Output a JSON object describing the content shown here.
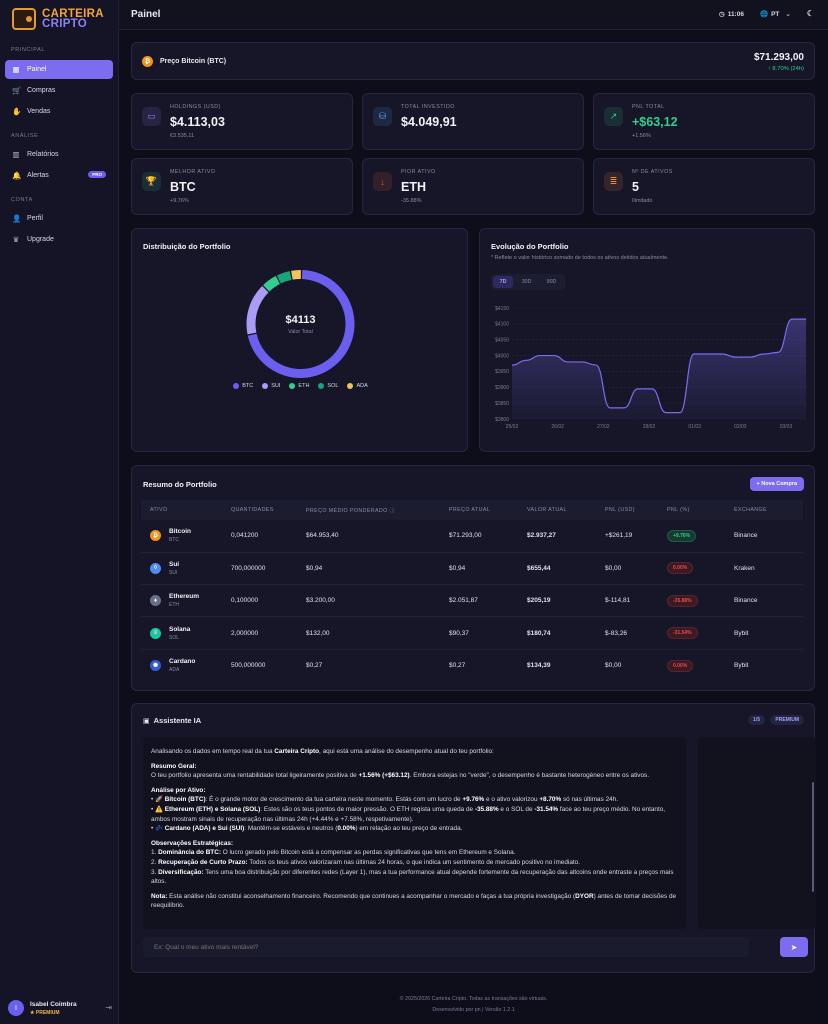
{
  "app": {
    "name_line1": "CARTEIRA",
    "name_line2": "CRIPTO"
  },
  "sidebar": {
    "sections": [
      "PRINCIPAL",
      "ANÁLISE",
      "CONTA"
    ],
    "items": [
      {
        "label": "Painel",
        "icon": "grid-icon"
      },
      {
        "label": "Compras",
        "icon": "cart-icon"
      },
      {
        "label": "Vendas",
        "icon": "hand-icon"
      },
      {
        "label": "Relatórios",
        "icon": "chart-icon"
      },
      {
        "label": "Alertas",
        "icon": "bell-icon",
        "badge": "PRO"
      },
      {
        "label": "Perfil",
        "icon": "user-icon"
      },
      {
        "label": "Upgrade",
        "icon": "crown-icon"
      }
    ],
    "user": {
      "initial": "I",
      "name": "Isabel Coimbra",
      "plan": "PREMIUM"
    }
  },
  "header": {
    "title": "Painel",
    "time": "11:06",
    "language": "PT"
  },
  "btc": {
    "label": "Preço Bitcoin (BTC)",
    "price": "$71.293,00",
    "change": "8.70% (24h)"
  },
  "stats": [
    {
      "label": "HOLDINGS (USD)",
      "value": "$4.113,03",
      "sub": "€3.535,11",
      "icon": "wallet-icon",
      "color": "#8b83f2"
    },
    {
      "label": "TOTAL INVESTIDO",
      "value": "$4.049,91",
      "sub": "",
      "icon": "coins-icon",
      "color": "#5b9cf2"
    },
    {
      "label": "PNL TOTAL",
      "value": "+$63,12",
      "sub": "+1.56%",
      "icon": "trend-up-icon",
      "color": "#2ecf8f"
    },
    {
      "label": "MELHOR ATIVO",
      "value": "BTC",
      "sub": "+9.76%",
      "icon": "trophy-icon",
      "color": "#2ecf8f"
    },
    {
      "label": "PIOR ATIVO",
      "value": "ETH",
      "sub": "-35.88%",
      "icon": "arrow-down-icon",
      "color": "#e8603a"
    },
    {
      "label": "Nº DE ATIVOS",
      "value": "5",
      "sub": "Ilimitado",
      "icon": "layers-icon",
      "color": "#f08a3a"
    }
  ],
  "distribution": {
    "title": "Distribuição do Portfolio",
    "center_value": "$4113",
    "center_label": "Valor Total",
    "legend": [
      "BTC",
      "SUI",
      "ETH",
      "SOL",
      "ADA"
    ]
  },
  "evolution": {
    "title": "Evolução do Portfolio",
    "note": "* Reflete o valor histórico somado de todos os ativos detidos atualmente.",
    "ranges": [
      "7D",
      "30D",
      "90D"
    ],
    "selected_range": "7D"
  },
  "chart_data": {
    "type": "area",
    "x": [
      "25/02",
      "25/02",
      "25/02",
      "25/02",
      "26/02",
      "26/02",
      "26/02",
      "27/02",
      "27/02",
      "27/02",
      "28/02",
      "28/02",
      "28/02",
      "01/03",
      "01/03",
      "01/03",
      "02/03",
      "02/03",
      "02/03",
      "03/03",
      "03/03",
      "03/03"
    ],
    "x_ticks": [
      "25/02",
      "26/02",
      "27/02",
      "28/02",
      "01/03",
      "02/03",
      "03/03"
    ],
    "values": [
      3970,
      3985,
      4000,
      4000,
      3980,
      3980,
      3970,
      3835,
      3835,
      3895,
      3895,
      3820,
      3820,
      4005,
      4005,
      4005,
      3995,
      3995,
      4005,
      4010,
      4115,
      4115
    ],
    "y_ticks": [
      "$3800",
      "$3850",
      "$3900",
      "$3950",
      "$4000",
      "$4050",
      "$4100",
      "$4150"
    ],
    "ylim": [
      3800,
      4150
    ],
    "grid": true,
    "color": "#7b6cf0"
  },
  "donut_data": {
    "type": "pie",
    "categories": [
      "BTC",
      "SUI",
      "ETH",
      "SOL",
      "ADA"
    ],
    "values": [
      71.4,
      15.9,
      5.0,
      4.4,
      3.3
    ],
    "colors": [
      "#6c5ff0",
      "#a99cf7",
      "#2ecf8f",
      "#19a57a",
      "#f4c15a"
    ]
  },
  "table": {
    "title": "Resumo do Portfolio",
    "button": "+ Nova Compra",
    "columns": [
      "ATIVO",
      "QUANTIDADES",
      "PREÇO MÉDIO PONDERADO ⓘ",
      "PREÇO ATUAL",
      "VALOR ATUAL",
      "PNL (USD)",
      "PNL (%)",
      "EXCHANGE"
    ],
    "rows": [
      {
        "name": "Bitcoin",
        "sym": "BTC",
        "qty": "0,041200",
        "avg": "$64.953,40",
        "price": "$71.293,00",
        "value": "$2.937,27",
        "pnl": "+$261,19",
        "pct": "+9.76%",
        "exchange": "Binance",
        "trend": "pos",
        "icon_color": "#f7931a",
        "glyph": "₿",
        "icon": "bitcoin-icon"
      },
      {
        "name": "Sui",
        "sym": "SUI",
        "qty": "700,000000",
        "avg": "$0,94",
        "price": "$0,94",
        "value": "$655,44",
        "pnl": "$0,00",
        "pct": "0.00%",
        "exchange": "Kraken",
        "trend": "neg",
        "icon_color": "#4d8df2",
        "glyph": "◊",
        "icon": "sui-icon"
      },
      {
        "name": "Ethereum",
        "sym": "ETH",
        "qty": "0,100000",
        "avg": "$3.200,00",
        "price": "$2.051,87",
        "value": "$205,19",
        "pnl": "$-114,81",
        "pct": "-35.88%",
        "exchange": "Binance",
        "trend": "neg",
        "icon_color": "#6a6f88",
        "glyph": "♦",
        "icon": "ethereum-icon"
      },
      {
        "name": "Solana",
        "sym": "SOL",
        "qty": "2,000000",
        "avg": "$132,00",
        "price": "$90,37",
        "value": "$180,74",
        "pnl": "$-83,26",
        "pct": "-31.54%",
        "exchange": "Bybit",
        "trend": "neg",
        "icon_color": "#19c9a0",
        "glyph": "≡",
        "icon": "solana-icon"
      },
      {
        "name": "Cardano",
        "sym": "ADA",
        "qty": "500,000000",
        "avg": "$0,27",
        "price": "$0,27",
        "value": "$134,39",
        "pnl": "$0,00",
        "pct": "0.00%",
        "exchange": "Bybit",
        "trend": "neg",
        "icon_color": "#2f5cd0",
        "glyph": "✺",
        "icon": "cardano-icon"
      }
    ]
  },
  "ai": {
    "title": "Assistente IA",
    "usage": "1/5",
    "plan": "PREMIUM",
    "input_placeholder": "Ex: Qual o meu ativo mais rentável?",
    "intro_a": "Analisando os dados em tempo real da tua ",
    "intro_b": "Carteira Cripto",
    "intro_c": ", aqui está uma análise do desempenho atual do teu portfolio:",
    "geral_title": "Resumo Geral:",
    "geral_a": "O teu portfolio apresenta uma rentabilidade total ligeiramente positiva de ",
    "geral_b": "+1.56% (+$63.12)",
    "geral_c": ". Embora estejas no \"verde\", o desempenho é bastante heterogéneo entre os ativos.",
    "ativo_title": "Análise por Ativo:",
    "b1_a": "🚀 ",
    "b1_b": "Bitcoin (BTC)",
    "b1_c": ": É o grande motor de crescimento da tua carteira neste momento. Estás com um lucro de ",
    "b1_d": "+9.76%",
    "b1_e": " e o ativo valorizou ",
    "b1_f": "+8.70%",
    "b1_g": " só nas últimas 24h.",
    "b2_a": "⚠️ ",
    "b2_b": "Ethereum (ETH) e Solana (SOL)",
    "b2_c": ": Estes são os teus pontos de maior pressão. O ETH regista uma queda de ",
    "b2_d": "-35.88%",
    "b2_e": " e o SOL de ",
    "b2_f": "-31.54%",
    "b2_g": " face ao teu preço médio. No entanto, ambos mostram sinais de recuperação nas últimas 24h (+4.44% e +7.58%, respetivamente).",
    "b3_a": "💤 ",
    "b3_b": "Cardano (ADA) e Sui (SUI)",
    "b3_c": ": Mantêm-se estáveis e neutros (",
    "b3_d": "0.00%",
    "b3_e": ") em relação ao teu preço de entrada.",
    "obs_title": "Observações Estratégicas:",
    "o1_a": "1. ",
    "o1_b": "Dominância do BTC:",
    "o1_c": " O lucro gerado pelo Bitcoin está a compensar as perdas significativas que tens em Ethereum e Solana.",
    "o2_a": "2. ",
    "o2_b": "Recuperação de Curto Prazo:",
    "o2_c": " Todos os teus ativos valorizaram nas últimas 24 horas, o que indica um sentimento de mercado positivo no imediato.",
    "o3_a": "3. ",
    "o3_b": "Diversificação:",
    "o3_c": " Tens uma boa distribuição por diferentes redes (Layer 1), mas a tua performance atual depende fortemente da recuperação das altcoins onde entraste a preços mais altos.",
    "note_a": "Nota:",
    "note_b": " Esta análise não constitui aconselhamento financeiro. Recomendo que continues a acompanhar o mercado e faças a tua própria investigação (",
    "note_c": "DYOR",
    "note_d": ") antes de tomar decisões de reequilíbrio."
  },
  "footer": {
    "line1": "© 2025/2026 Carteira Cripto. Todas as transações são virtuais.",
    "line2": "Desenvolvido por pn | Versão 1.2.1"
  }
}
